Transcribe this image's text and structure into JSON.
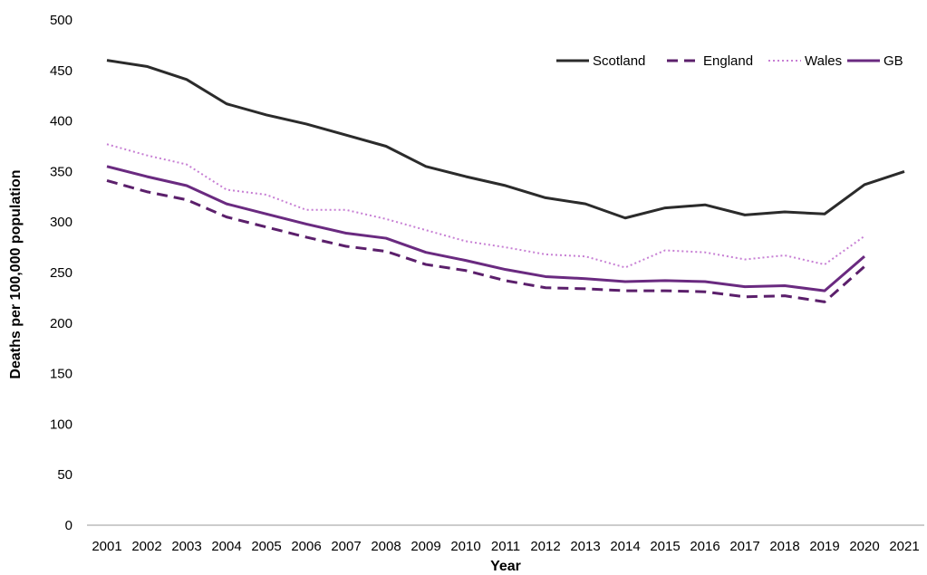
{
  "chart_data": {
    "type": "line",
    "title": "",
    "xlabel": "Year",
    "ylabel": "Deaths per 100,000 population",
    "ylim": [
      0,
      500
    ],
    "yticks": [
      0,
      50,
      100,
      150,
      200,
      250,
      300,
      350,
      400,
      450,
      500
    ],
    "grid": false,
    "legend_position": "top-right",
    "categories": [
      "2001",
      "2002",
      "2003",
      "2004",
      "2005",
      "2006",
      "2007",
      "2008",
      "2009",
      "2010",
      "2011",
      "2012",
      "2013",
      "2014",
      "2015",
      "2016",
      "2017",
      "2018",
      "2019",
      "2020",
      "2021"
    ],
    "series": [
      {
        "name": "Scotland",
        "color": "#2b2b2b",
        "style": "solid",
        "values": [
          460,
          454,
          441,
          417,
          406,
          397,
          386,
          375,
          355,
          345,
          336,
          324,
          318,
          304,
          314,
          317,
          307,
          310,
          308,
          337,
          350
        ]
      },
      {
        "name": "England",
        "color": "#5b1f6b",
        "style": "dashed",
        "values": [
          341,
          330,
          322,
          305,
          295,
          285,
          276,
          271,
          258,
          252,
          242,
          235,
          234,
          232,
          232,
          231,
          226,
          227,
          221,
          256,
          null
        ]
      },
      {
        "name": "Wales",
        "color": "#c77fd4",
        "style": "dotted",
        "values": [
          377,
          366,
          357,
          332,
          327,
          312,
          312,
          303,
          292,
          281,
          275,
          268,
          266,
          255,
          272,
          270,
          263,
          267,
          258,
          286,
          null
        ]
      },
      {
        "name": "GB",
        "color": "#6a2a80",
        "style": "solid",
        "values": [
          355,
          345,
          336,
          318,
          308,
          298,
          289,
          284,
          270,
          262,
          253,
          246,
          244,
          241,
          242,
          241,
          236,
          237,
          232,
          266,
          null
        ]
      }
    ]
  }
}
